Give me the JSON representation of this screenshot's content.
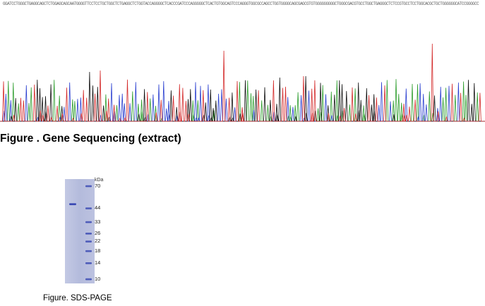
{
  "sequence_strip": {
    "text": "GGATCCTGGGCTGAGGCAGCTCTGGAGCAGCAATGGGGTTCCTCCTGCTGGCTCTGAGGCTCTGGTACCAGGGGCTCACCCGATCCCAGGGGGCTCACTGTGGCAGTCCCAGGGTGGCGCCAGCCTGGTGGGGCAGCGAGCGTGTGGGGGGGGGCTGGGCGACGTGCCTGGCTGAGGGCTCTCCGTGCCTCCTGGCACGCTGCTGGGGGGCATCCGGGGCC"
  },
  "figure1": {
    "caption": "Figure . Gene Sequencing (extract)"
  },
  "figure2": {
    "caption": "Figure. SDS-PAGE",
    "unit": "kDa",
    "markers": [
      {
        "label": "70",
        "kda": 70
      },
      {
        "label": "44",
        "kda": 44
      },
      {
        "label": "33",
        "kda": 33
      },
      {
        "label": "26",
        "kda": 26
      },
      {
        "label": "22",
        "kda": 22
      },
      {
        "label": "18",
        "kda": 18
      },
      {
        "label": "14",
        "kda": 14
      },
      {
        "label": "10",
        "kda": 10
      }
    ],
    "sample_band_kda": 48,
    "colors": {
      "gel": "#b7bedd",
      "band": "#3c4bb4"
    }
  },
  "trace_colors": {
    "A": "#2e9e2e",
    "C": "#2a3fd0",
    "G": "#111111",
    "T": "#d42a2a"
  }
}
